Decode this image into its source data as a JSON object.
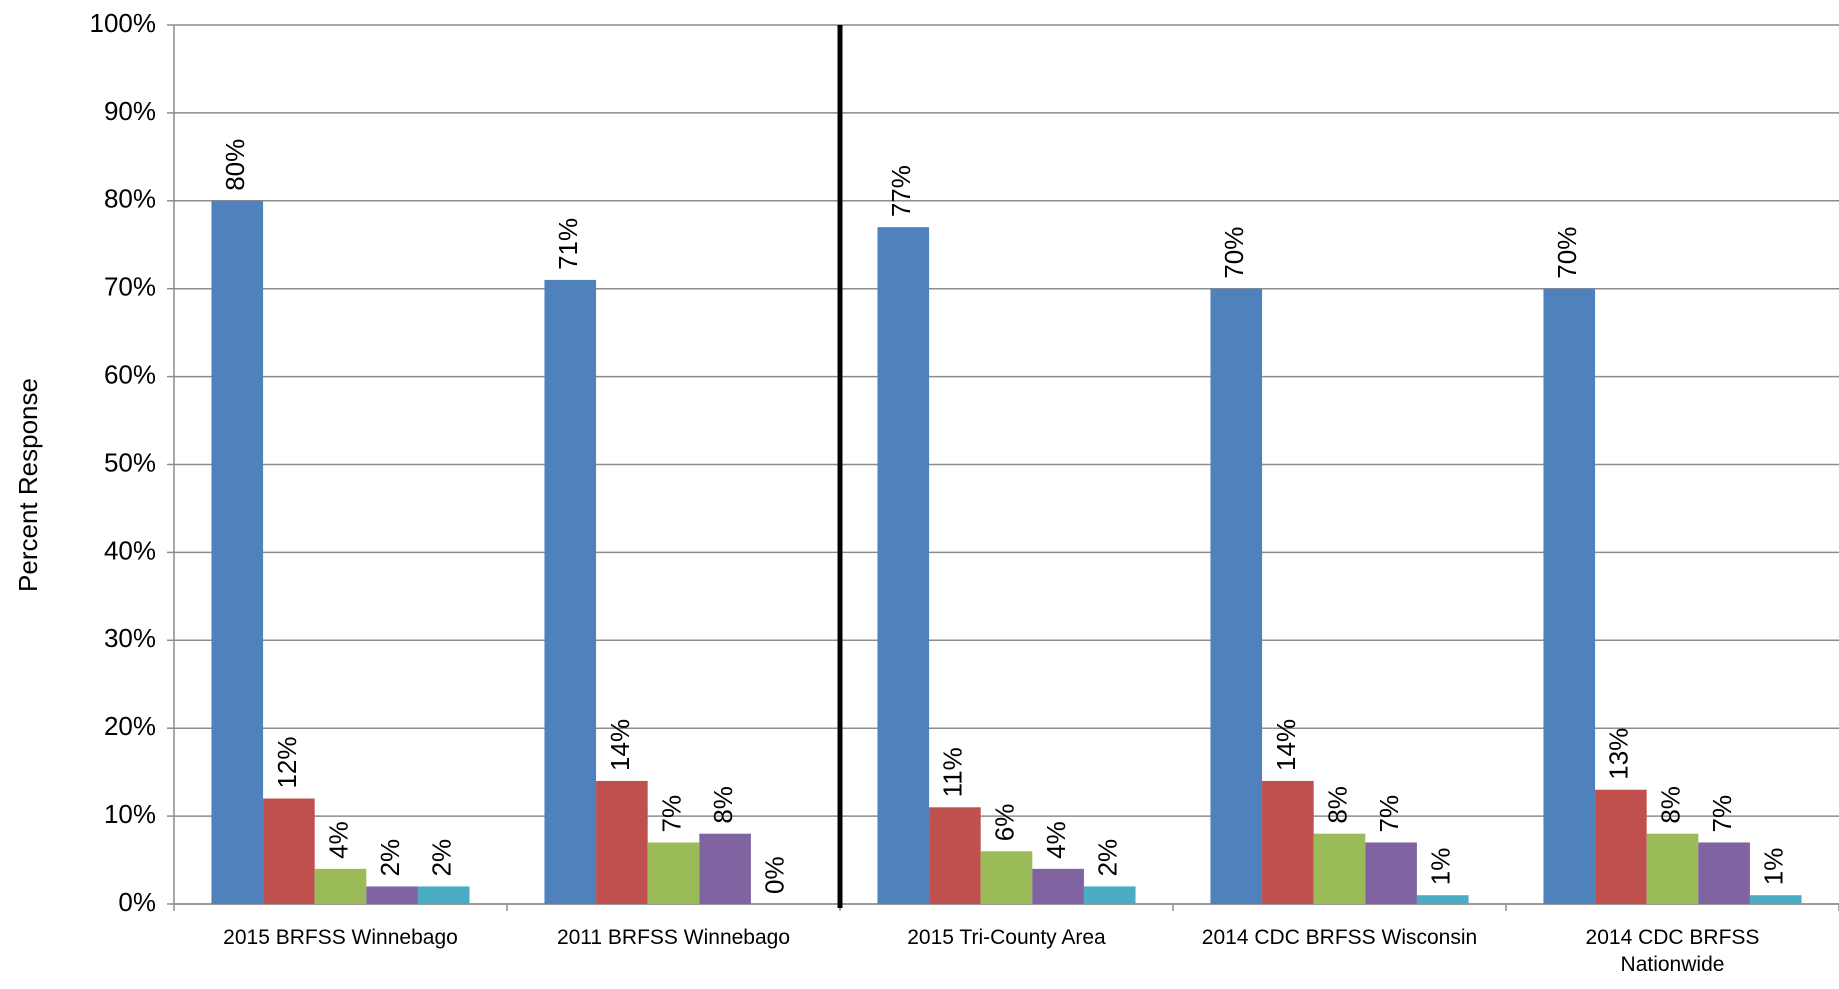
{
  "chart_data": {
    "type": "bar",
    "y_label": "Percent Response",
    "categories": [
      "2015 BRFSS Winnebago",
      "2011 BRFSS Winnebago",
      "2015 Tri-County Area",
      "2014 CDC BRFSS Wisconsin",
      "2014 CDC BRFSS Nationwide"
    ],
    "series": [
      {
        "color": "#4f81bd",
        "values": [
          80,
          71,
          77,
          70,
          70
        ],
        "value_labels": [
          "80%",
          "71%",
          "77%",
          "70%",
          "70%"
        ]
      },
      {
        "color": "#c0504d",
        "values": [
          12,
          14,
          11,
          14,
          13
        ],
        "value_labels": [
          "12%",
          "14%",
          "11%",
          "14%",
          "13%"
        ]
      },
      {
        "color": "#9bbb59",
        "values": [
          4,
          7,
          6,
          8,
          8
        ],
        "value_labels": [
          "4%",
          "7%",
          "6%",
          "8%",
          "8%"
        ]
      },
      {
        "color": "#8064a2",
        "values": [
          2,
          8,
          4,
          7,
          7
        ],
        "value_labels": [
          "2%",
          "8%",
          "4%",
          "7%",
          "7%"
        ]
      },
      {
        "color": "#4bacc6",
        "values": [
          2,
          0,
          2,
          1,
          1
        ],
        "value_labels": [
          "2%",
          "0%",
          "2%",
          "1%",
          "1%"
        ]
      }
    ],
    "ylim": [
      0,
      100
    ],
    "yticks": [
      {
        "value": 0,
        "label": "0%"
      },
      {
        "value": 10,
        "label": "10%"
      },
      {
        "value": 20,
        "label": "20%"
      },
      {
        "value": 30,
        "label": "30%"
      },
      {
        "value": 40,
        "label": "40%"
      },
      {
        "value": 50,
        "label": "50%"
      },
      {
        "value": 60,
        "label": "60%"
      },
      {
        "value": 70,
        "label": "70%"
      },
      {
        "value": 80,
        "label": "80%"
      },
      {
        "value": 90,
        "label": "90%"
      },
      {
        "value": 100,
        "label": "100%"
      }
    ],
    "grid": true
  }
}
